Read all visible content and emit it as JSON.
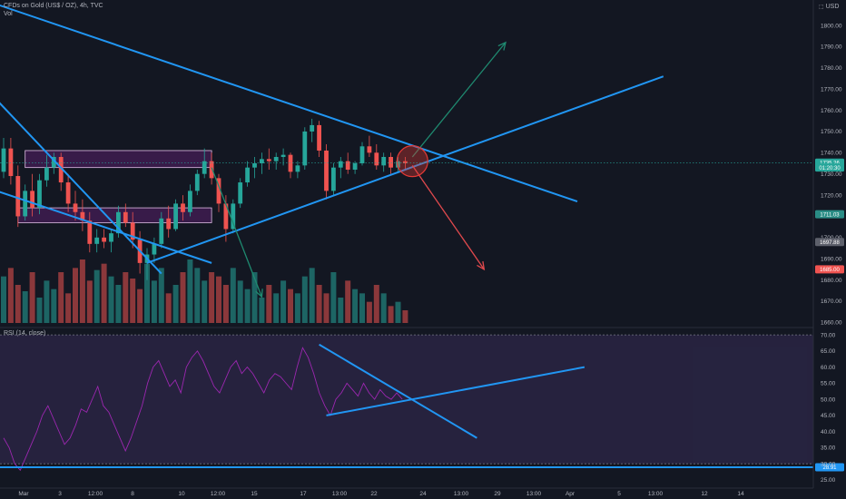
{
  "header": {
    "symbol_line": "CFDs on Gold (US$ / OZ), 4h, TVC",
    "volume_label": "Vol",
    "rsi_label": "RSI (14, close)",
    "currency": "USD"
  },
  "chart_data": [
    {
      "type": "candlestick",
      "title": "CFDs on Gold (US$ / OZ), 4h, TVC",
      "y_axis": {
        "ticks": [
          "1660.00",
          "1670.00",
          "1680.00",
          "1690.00",
          "1700.00",
          "1710.00",
          "1720.00",
          "1730.00",
          "1740.00",
          "1750.00",
          "1760.00",
          "1770.00",
          "1780.00",
          "1790.00",
          "1800.00"
        ],
        "ylim": [
          1658,
          1812
        ]
      },
      "x_axis": {
        "ticks": [
          "Mar",
          "3",
          "12:00",
          "8",
          "10",
          "12:00",
          "15",
          "17",
          "13:00",
          "22",
          "24",
          "13:00",
          "29",
          "13:00",
          "Apr",
          "5",
          "13:00",
          "12",
          "14"
        ]
      },
      "price_badges": [
        {
          "label": "1735.26",
          "value": 1735.3,
          "color": "#26a69a"
        },
        {
          "label": "01:20:30",
          "value": 1733.0,
          "color": "#26a69a"
        },
        {
          "label": "1711.03",
          "value": 1711.0,
          "color": "#2a8c85"
        },
        {
          "label": "1697.88",
          "value": 1697.9,
          "color": "#5d606b"
        },
        {
          "label": "1685.00",
          "value": 1685.0,
          "color": "#ef5350"
        }
      ],
      "annotation_boxes": [
        {
          "from_bar": 3,
          "to_bar": 29,
          "y_top": 1741,
          "y_bottom": 1733
        },
        {
          "from_bar": 2,
          "to_bar": 29,
          "y_top": 1714,
          "y_bottom": 1707
        }
      ],
      "trendlines": [
        {
          "x": [
            -1,
            80
          ],
          "y": [
            1810,
            1717
          ]
        },
        {
          "x": [
            -1,
            22
          ],
          "y": [
            1765,
            1683
          ]
        },
        {
          "x": [
            -1,
            29
          ],
          "y": [
            1722,
            1688
          ]
        },
        {
          "x": [
            20,
            92
          ],
          "y": [
            1688,
            1776
          ]
        }
      ],
      "arrows": [
        {
          "x": [
            57,
            70
          ],
          "y": [
            1738,
            1792
          ],
          "color": "#1f8a70"
        },
        {
          "x": [
            57,
            67
          ],
          "y": [
            1734,
            1685
          ],
          "color": "#e0494d"
        },
        {
          "x": [
            29,
            36
          ],
          "y": [
            1733,
            1672
          ],
          "color": "#1f8a70"
        }
      ],
      "circle": {
        "x": 57,
        "y": 1736
      },
      "ohlc": [
        [
          1731,
          1747,
          1728,
          1742
        ],
        [
          1742,
          1747,
          1725,
          1729
        ],
        [
          1729,
          1734,
          1705,
          1710
        ],
        [
          1710,
          1725,
          1708,
          1722
        ],
        [
          1722,
          1730,
          1710,
          1714
        ],
        [
          1714,
          1730,
          1711,
          1727
        ],
        [
          1727,
          1739,
          1724,
          1733
        ],
        [
          1733,
          1740,
          1730,
          1738
        ],
        [
          1738,
          1740,
          1722,
          1726
        ],
        [
          1726,
          1730,
          1712,
          1716
        ],
        [
          1716,
          1722,
          1708,
          1712
        ],
        [
          1712,
          1718,
          1703,
          1708
        ],
        [
          1708,
          1712,
          1693,
          1697
        ],
        [
          1697,
          1704,
          1693,
          1700
        ],
        [
          1700,
          1704,
          1695,
          1698
        ],
        [
          1698,
          1704,
          1693,
          1702
        ],
        [
          1702,
          1715,
          1700,
          1712
        ],
        [
          1712,
          1716,
          1705,
          1707
        ],
        [
          1707,
          1712,
          1695,
          1699
        ],
        [
          1699,
          1703,
          1683,
          1688
        ],
        [
          1688,
          1695,
          1680,
          1692
        ],
        [
          1692,
          1700,
          1688,
          1697
        ],
        [
          1697,
          1712,
          1695,
          1709
        ],
        [
          1709,
          1715,
          1700,
          1704
        ],
        [
          1704,
          1718,
          1703,
          1716
        ],
        [
          1716,
          1720,
          1708,
          1712
        ],
        [
          1712,
          1725,
          1710,
          1722
        ],
        [
          1722,
          1732,
          1720,
          1730
        ],
        [
          1730,
          1742,
          1728,
          1736
        ],
        [
          1736,
          1740,
          1725,
          1728
        ],
        [
          1728,
          1730,
          1712,
          1716
        ],
        [
          1716,
          1720,
          1698,
          1704
        ],
        [
          1704,
          1718,
          1702,
          1716
        ],
        [
          1716,
          1728,
          1714,
          1726
        ],
        [
          1726,
          1736,
          1724,
          1733
        ],
        [
          1733,
          1738,
          1728,
          1735
        ],
        [
          1735,
          1740,
          1730,
          1737
        ],
        [
          1737,
          1742,
          1732,
          1736
        ],
        [
          1736,
          1740,
          1732,
          1738
        ],
        [
          1738,
          1742,
          1734,
          1739
        ],
        [
          1739,
          1740,
          1728,
          1731
        ],
        [
          1731,
          1736,
          1728,
          1734
        ],
        [
          1734,
          1752,
          1732,
          1750
        ],
        [
          1750,
          1756,
          1745,
          1753
        ],
        [
          1753,
          1755,
          1738,
          1741
        ],
        [
          1741,
          1744,
          1718,
          1722
        ],
        [
          1722,
          1735,
          1720,
          1733
        ],
        [
          1733,
          1738,
          1728,
          1736
        ],
        [
          1736,
          1740,
          1730,
          1732
        ],
        [
          1732,
          1736,
          1730,
          1735
        ],
        [
          1735,
          1745,
          1734,
          1743
        ],
        [
          1743,
          1748,
          1738,
          1740
        ],
        [
          1740,
          1744,
          1732,
          1734
        ],
        [
          1734,
          1740,
          1731,
          1738
        ],
        [
          1738,
          1740,
          1730,
          1733
        ],
        [
          1733,
          1738,
          1731,
          1736
        ],
        [
          1736,
          1738,
          1732,
          1735
        ]
      ],
      "volume": [
        22,
        26,
        18,
        15,
        24,
        12,
        20,
        16,
        24,
        14,
        26,
        30,
        20,
        25,
        28,
        22,
        18,
        24,
        21,
        16,
        28,
        20,
        26,
        14,
        18,
        24,
        30,
        26,
        20,
        24,
        22,
        18,
        26,
        20,
        16,
        24,
        12,
        18,
        14,
        20,
        16,
        14,
        22,
        26,
        18,
        14,
        24,
        12,
        20,
        16,
        14,
        10,
        18,
        14,
        8,
        10,
        6
      ]
    },
    {
      "type": "line",
      "title": "RSI (14, close)",
      "y_axis": {
        "ticks": [
          "25.00",
          "30.00",
          "35.00",
          "40.00",
          "45.00",
          "50.00",
          "55.00",
          "60.00",
          "65.00",
          "70.00"
        ],
        "ylim": [
          23,
          72
        ]
      },
      "levels": {
        "upper": 70,
        "lower": 30
      },
      "badge": {
        "label": "28.91",
        "value": 28.9,
        "color": "#2196f3"
      },
      "horizontal_line": 28.9,
      "trendlines": [
        {
          "x": [
            44,
            66
          ],
          "y": [
            67,
            38
          ]
        },
        {
          "x": [
            45,
            81
          ],
          "y": [
            45,
            60
          ]
        }
      ],
      "values": [
        38,
        35,
        30,
        28,
        32,
        36,
        40,
        45,
        48,
        44,
        40,
        36,
        38,
        42,
        47,
        46,
        50,
        54,
        48,
        46,
        42,
        38,
        34,
        38,
        43,
        48,
        55,
        60,
        62,
        58,
        54,
        56,
        52,
        60,
        63,
        65,
        62,
        58,
        54,
        52,
        56,
        60,
        62,
        58,
        60,
        58,
        55,
        52,
        56,
        58,
        57,
        55,
        53,
        60,
        66,
        63,
        58,
        52,
        48,
        45,
        50,
        52,
        55,
        53,
        51,
        55,
        52,
        50,
        53,
        51,
        50,
        52,
        50
      ]
    }
  ]
}
